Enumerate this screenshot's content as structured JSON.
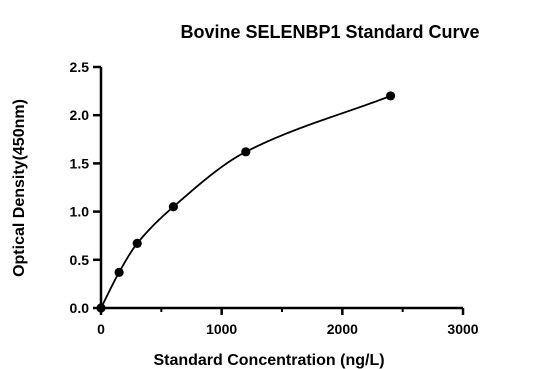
{
  "chart_data": {
    "type": "scatter",
    "title": "Bovine SELENBP1 Standard Curve",
    "xlabel": "Standard Concentration (ng/L)",
    "ylabel": "Optical Density(450nm)",
    "xlim": [
      0,
      3000
    ],
    "ylim": [
      0,
      2.5
    ],
    "xticks": [
      "0",
      "1000",
      "2000",
      "3000"
    ],
    "yticks": [
      "0.0",
      "0.5",
      "1.0",
      "1.5",
      "2.0",
      "2.5"
    ],
    "series": [
      {
        "x": [
          0,
          150,
          300,
          600,
          1200,
          2400
        ],
        "y": [
          0.0,
          0.37,
          0.67,
          1.05,
          1.62,
          2.2
        ]
      }
    ],
    "fit_curve": true,
    "grid": false,
    "legend": "none"
  }
}
